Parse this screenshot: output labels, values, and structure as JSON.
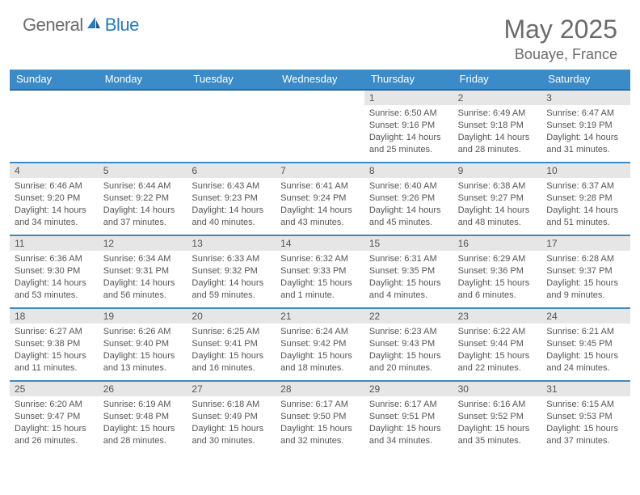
{
  "logo": {
    "general": "General",
    "blue": "Blue"
  },
  "title": "May 2025",
  "location": "Bouaye, France",
  "colors": {
    "header_bg": "#3b8bc8",
    "header_border": "#2a6a9c",
    "daynum_bg": "#e6e6e6",
    "week_divider": "#3b8bc8",
    "text": "#555555",
    "logo_gray": "#6b6b6b",
    "logo_blue": "#2a7ab8"
  },
  "typography": {
    "title_fontsize": 32,
    "location_fontsize": 18,
    "weekday_fontsize": 13,
    "daynum_fontsize": 12,
    "body_fontsize": 11
  },
  "weekdays": [
    "Sunday",
    "Monday",
    "Tuesday",
    "Wednesday",
    "Thursday",
    "Friday",
    "Saturday"
  ],
  "weeks": [
    [
      {
        "empty": true
      },
      {
        "empty": true
      },
      {
        "empty": true
      },
      {
        "empty": true
      },
      {
        "num": "1",
        "sunrise": "Sunrise: 6:50 AM",
        "sunset": "Sunset: 9:16 PM",
        "daylight": "Daylight: 14 hours and 25 minutes."
      },
      {
        "num": "2",
        "sunrise": "Sunrise: 6:49 AM",
        "sunset": "Sunset: 9:18 PM",
        "daylight": "Daylight: 14 hours and 28 minutes."
      },
      {
        "num": "3",
        "sunrise": "Sunrise: 6:47 AM",
        "sunset": "Sunset: 9:19 PM",
        "daylight": "Daylight: 14 hours and 31 minutes."
      }
    ],
    [
      {
        "num": "4",
        "sunrise": "Sunrise: 6:46 AM",
        "sunset": "Sunset: 9:20 PM",
        "daylight": "Daylight: 14 hours and 34 minutes."
      },
      {
        "num": "5",
        "sunrise": "Sunrise: 6:44 AM",
        "sunset": "Sunset: 9:22 PM",
        "daylight": "Daylight: 14 hours and 37 minutes."
      },
      {
        "num": "6",
        "sunrise": "Sunrise: 6:43 AM",
        "sunset": "Sunset: 9:23 PM",
        "daylight": "Daylight: 14 hours and 40 minutes."
      },
      {
        "num": "7",
        "sunrise": "Sunrise: 6:41 AM",
        "sunset": "Sunset: 9:24 PM",
        "daylight": "Daylight: 14 hours and 43 minutes."
      },
      {
        "num": "8",
        "sunrise": "Sunrise: 6:40 AM",
        "sunset": "Sunset: 9:26 PM",
        "daylight": "Daylight: 14 hours and 45 minutes."
      },
      {
        "num": "9",
        "sunrise": "Sunrise: 6:38 AM",
        "sunset": "Sunset: 9:27 PM",
        "daylight": "Daylight: 14 hours and 48 minutes."
      },
      {
        "num": "10",
        "sunrise": "Sunrise: 6:37 AM",
        "sunset": "Sunset: 9:28 PM",
        "daylight": "Daylight: 14 hours and 51 minutes."
      }
    ],
    [
      {
        "num": "11",
        "sunrise": "Sunrise: 6:36 AM",
        "sunset": "Sunset: 9:30 PM",
        "daylight": "Daylight: 14 hours and 53 minutes."
      },
      {
        "num": "12",
        "sunrise": "Sunrise: 6:34 AM",
        "sunset": "Sunset: 9:31 PM",
        "daylight": "Daylight: 14 hours and 56 minutes."
      },
      {
        "num": "13",
        "sunrise": "Sunrise: 6:33 AM",
        "sunset": "Sunset: 9:32 PM",
        "daylight": "Daylight: 14 hours and 59 minutes."
      },
      {
        "num": "14",
        "sunrise": "Sunrise: 6:32 AM",
        "sunset": "Sunset: 9:33 PM",
        "daylight": "Daylight: 15 hours and 1 minute."
      },
      {
        "num": "15",
        "sunrise": "Sunrise: 6:31 AM",
        "sunset": "Sunset: 9:35 PM",
        "daylight": "Daylight: 15 hours and 4 minutes."
      },
      {
        "num": "16",
        "sunrise": "Sunrise: 6:29 AM",
        "sunset": "Sunset: 9:36 PM",
        "daylight": "Daylight: 15 hours and 6 minutes."
      },
      {
        "num": "17",
        "sunrise": "Sunrise: 6:28 AM",
        "sunset": "Sunset: 9:37 PM",
        "daylight": "Daylight: 15 hours and 9 minutes."
      }
    ],
    [
      {
        "num": "18",
        "sunrise": "Sunrise: 6:27 AM",
        "sunset": "Sunset: 9:38 PM",
        "daylight": "Daylight: 15 hours and 11 minutes."
      },
      {
        "num": "19",
        "sunrise": "Sunrise: 6:26 AM",
        "sunset": "Sunset: 9:40 PM",
        "daylight": "Daylight: 15 hours and 13 minutes."
      },
      {
        "num": "20",
        "sunrise": "Sunrise: 6:25 AM",
        "sunset": "Sunset: 9:41 PM",
        "daylight": "Daylight: 15 hours and 16 minutes."
      },
      {
        "num": "21",
        "sunrise": "Sunrise: 6:24 AM",
        "sunset": "Sunset: 9:42 PM",
        "daylight": "Daylight: 15 hours and 18 minutes."
      },
      {
        "num": "22",
        "sunrise": "Sunrise: 6:23 AM",
        "sunset": "Sunset: 9:43 PM",
        "daylight": "Daylight: 15 hours and 20 minutes."
      },
      {
        "num": "23",
        "sunrise": "Sunrise: 6:22 AM",
        "sunset": "Sunset: 9:44 PM",
        "daylight": "Daylight: 15 hours and 22 minutes."
      },
      {
        "num": "24",
        "sunrise": "Sunrise: 6:21 AM",
        "sunset": "Sunset: 9:45 PM",
        "daylight": "Daylight: 15 hours and 24 minutes."
      }
    ],
    [
      {
        "num": "25",
        "sunrise": "Sunrise: 6:20 AM",
        "sunset": "Sunset: 9:47 PM",
        "daylight": "Daylight: 15 hours and 26 minutes."
      },
      {
        "num": "26",
        "sunrise": "Sunrise: 6:19 AM",
        "sunset": "Sunset: 9:48 PM",
        "daylight": "Daylight: 15 hours and 28 minutes."
      },
      {
        "num": "27",
        "sunrise": "Sunrise: 6:18 AM",
        "sunset": "Sunset: 9:49 PM",
        "daylight": "Daylight: 15 hours and 30 minutes."
      },
      {
        "num": "28",
        "sunrise": "Sunrise: 6:17 AM",
        "sunset": "Sunset: 9:50 PM",
        "daylight": "Daylight: 15 hours and 32 minutes."
      },
      {
        "num": "29",
        "sunrise": "Sunrise: 6:17 AM",
        "sunset": "Sunset: 9:51 PM",
        "daylight": "Daylight: 15 hours and 34 minutes."
      },
      {
        "num": "30",
        "sunrise": "Sunrise: 6:16 AM",
        "sunset": "Sunset: 9:52 PM",
        "daylight": "Daylight: 15 hours and 35 minutes."
      },
      {
        "num": "31",
        "sunrise": "Sunrise: 6:15 AM",
        "sunset": "Sunset: 9:53 PM",
        "daylight": "Daylight: 15 hours and 37 minutes."
      }
    ]
  ]
}
